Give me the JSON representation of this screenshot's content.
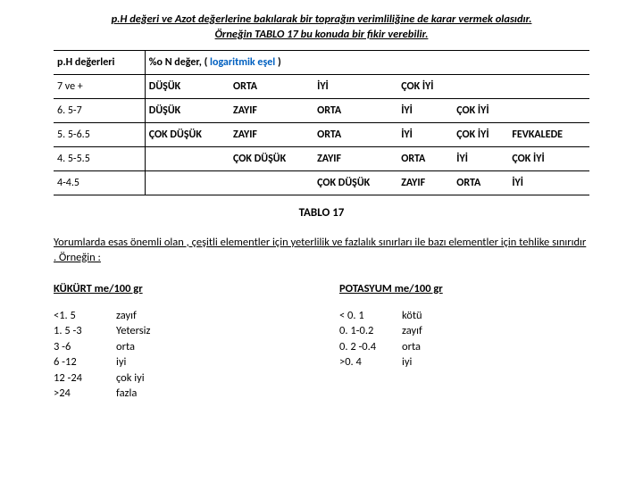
{
  "intro_line1": "p.H değeri ve Azot değerlerine bakılarak bir toprağın verimliliğine de karar vermek olasıdır.",
  "intro_line2": "Örneğin TABLO 17 bu konuda bir fikir verebilir.",
  "table": {
    "col0_header": "p.H değerleri",
    "right_header_plain": "%o N değer, ( ",
    "right_header_blue": "logaritmik eşel",
    "right_header_tail": " )",
    "rows": [
      {
        "ph": "7 ve +",
        "c": [
          "DÜŞÜK",
          "ORTA",
          "İYİ",
          "ÇOK İYİ",
          "",
          ""
        ]
      },
      {
        "ph": "6. 5-7",
        "c": [
          "DÜŞÜK",
          "ZAYIF",
          "ORTA",
          "İYİ",
          "ÇOK İYİ",
          ""
        ]
      },
      {
        "ph": "5. 5-6.5",
        "c": [
          "ÇOK DÜŞÜK",
          "ZAYIF",
          "ORTA",
          "İYİ",
          "ÇOK İYİ",
          "FEVKALEDE"
        ]
      },
      {
        "ph": "4. 5-5.5",
        "c": [
          "",
          "ÇOK DÜŞÜK",
          "ZAYIF",
          "ORTA",
          "İYİ",
          "ÇOK İYİ"
        ]
      },
      {
        "ph": "4-4.5",
        "c": [
          "",
          "",
          "ÇOK DÜŞÜK",
          "ZAYIF",
          "ORTA",
          "İYİ"
        ]
      }
    ]
  },
  "caption": "TABLO 17",
  "paragraph": "Yorumlarda esas önemli olan , çeşitli elementler için yeterlilik ve fazlalık sınırları ile bazı elementler için tehlike sınırıdır . Örneğin :",
  "left": {
    "title": "KÜKÜRT me/100 gr",
    "pairs": [
      {
        "k": "<1. 5",
        "v": "zayıf"
      },
      {
        "k": "1. 5 -3",
        "v": "Yetersiz"
      },
      {
        "k": "3 -6",
        "v": "orta"
      },
      {
        "k": "6 -12",
        "v": "iyi"
      },
      {
        "k": "12 -24",
        "v": "çok iyi"
      },
      {
        "k": ">24",
        "v": "fazla"
      }
    ]
  },
  "right": {
    "title": "POTASYUM me/100 gr",
    "pairs": [
      {
        "k": "< 0. 1",
        "v": "kötü"
      },
      {
        "k": "0. 1-0.2",
        "v": "zayıf"
      },
      {
        "k": "0. 2 -0.4",
        "v": "orta"
      },
      {
        "k": ">0. 4",
        "v": "iyi"
      }
    ]
  }
}
